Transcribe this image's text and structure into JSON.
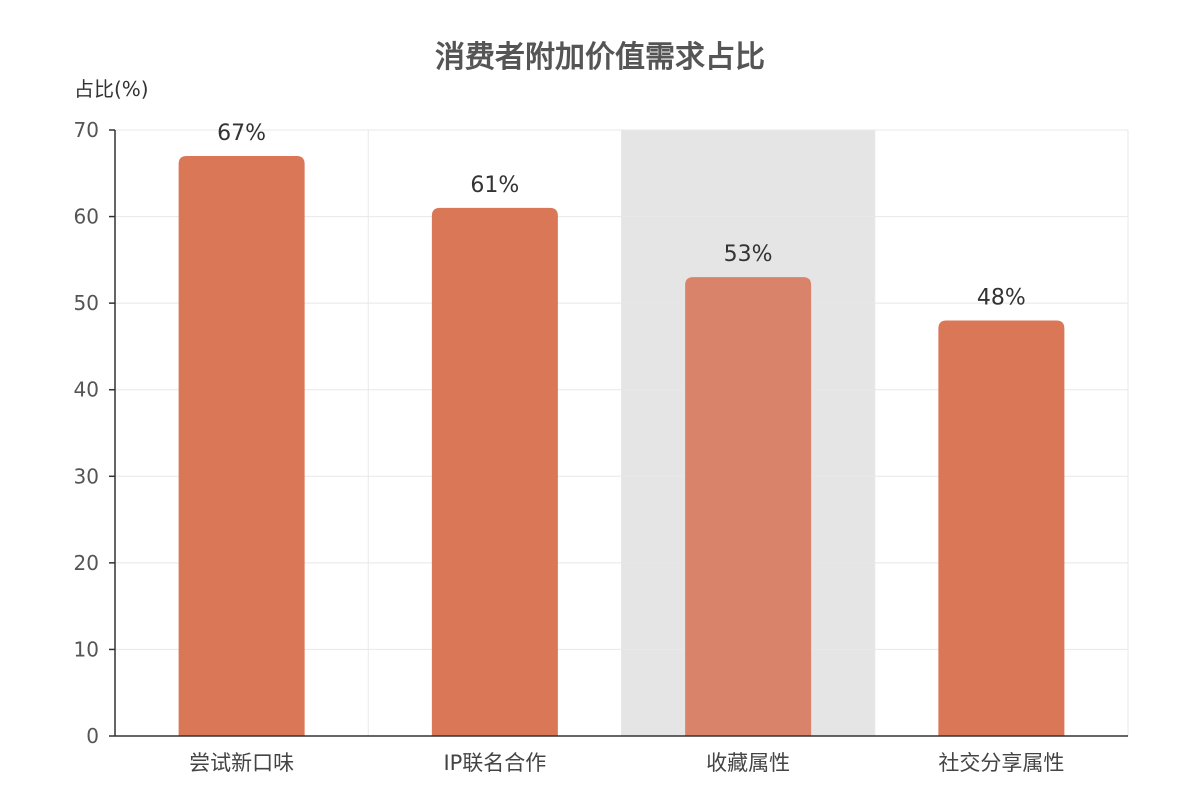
{
  "chart_data": {
    "type": "bar",
    "title": "消费者附加价值需求占比",
    "ylabel": "占比(%)",
    "xlabel": "",
    "categories": [
      "尝试新口味",
      "IP联名合作",
      "收藏属性",
      "社交分享属性"
    ],
    "values": [
      67,
      61,
      53,
      48
    ],
    "data_labels": [
      "67%",
      "61%",
      "53%",
      "48%"
    ],
    "ylim": [
      0,
      70
    ],
    "yticks": [
      0,
      10,
      20,
      30,
      40,
      50,
      60,
      70
    ],
    "highlighted_category": "收藏属性",
    "grid": true,
    "colors": {
      "bar": "#D97757",
      "bar_highlight": "#D9836A",
      "highlight_band": "#E5E5E5",
      "grid": "#E8E8E8",
      "axis": "#333333"
    }
  }
}
